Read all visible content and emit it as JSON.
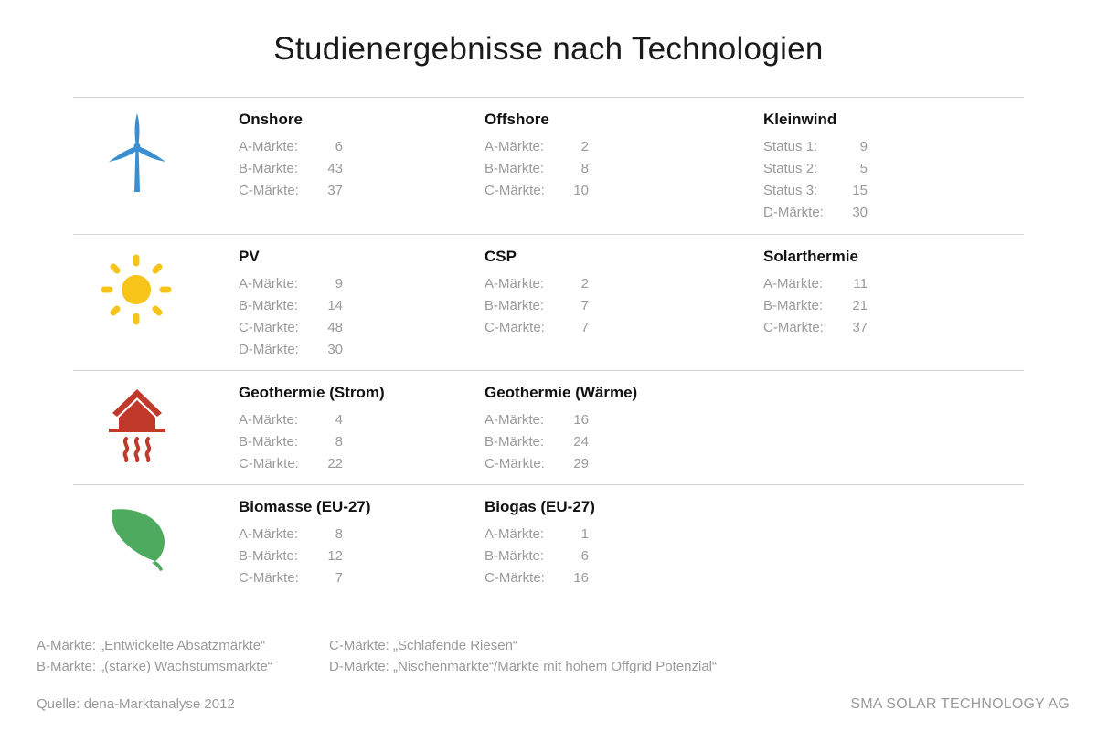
{
  "title": "Studienergebnisse nach Technologien",
  "colors": {
    "wind": "#3b8fd0",
    "sun": "#f7c41a",
    "geo": "#c0392b",
    "bio": "#4eaa5e"
  },
  "sections": [
    {
      "icon": "wind-turbine-icon",
      "groups": [
        {
          "title": "Onshore",
          "rows": [
            {
              "label": "A-Märkte:",
              "value": "6"
            },
            {
              "label": "B-Märkte:",
              "value": "43"
            },
            {
              "label": "C-Märkte:",
              "value": "37"
            }
          ]
        },
        {
          "title": "Offshore",
          "rows": [
            {
              "label": "A-Märkte:",
              "value": "2"
            },
            {
              "label": "B-Märkte:",
              "value": "8"
            },
            {
              "label": "C-Märkte:",
              "value": "10"
            }
          ]
        },
        {
          "title": "Kleinwind",
          "rows": [
            {
              "label": "Status 1:",
              "value": "9"
            },
            {
              "label": "Status 2:",
              "value": "5"
            },
            {
              "label": "Status 3:",
              "value": "15"
            },
            {
              "label": "D-Märkte:",
              "value": "30"
            }
          ]
        }
      ]
    },
    {
      "icon": "sun-icon",
      "groups": [
        {
          "title": "PV",
          "rows": [
            {
              "label": "A-Märkte:",
              "value": "9"
            },
            {
              "label": "B-Märkte:",
              "value": "14"
            },
            {
              "label": "C-Märkte:",
              "value": "48"
            },
            {
              "label": "D-Märkte:",
              "value": "30"
            }
          ]
        },
        {
          "title": "CSP",
          "rows": [
            {
              "label": "A-Märkte:",
              "value": "2"
            },
            {
              "label": "B-Märkte:",
              "value": "7"
            },
            {
              "label": "C-Märkte:",
              "value": "7"
            }
          ]
        },
        {
          "title": "Solarthermie",
          "rows": [
            {
              "label": "A-Märkte:",
              "value": "11"
            },
            {
              "label": "B-Märkte:",
              "value": "21"
            },
            {
              "label": "C-Märkte:",
              "value": "37"
            }
          ]
        }
      ]
    },
    {
      "icon": "geothermal-house-icon",
      "groups": [
        {
          "title": "Geothermie (Strom)",
          "rows": [
            {
              "label": "A-Märkte:",
              "value": "4"
            },
            {
              "label": "B-Märkte:",
              "value": "8"
            },
            {
              "label": "C-Märkte:",
              "value": "22"
            }
          ]
        },
        {
          "title": "Geothermie (Wärme)",
          "rows": [
            {
              "label": "A-Märkte:",
              "value": "16"
            },
            {
              "label": "B-Märkte:",
              "value": "24"
            },
            {
              "label": "C-Märkte:",
              "value": "29"
            }
          ]
        }
      ]
    },
    {
      "icon": "leaf-icon",
      "groups": [
        {
          "title": "Biomasse (EU-27)",
          "rows": [
            {
              "label": "A-Märkte:",
              "value": "8"
            },
            {
              "label": "B-Märkte:",
              "value": "12"
            },
            {
              "label": "C-Märkte:",
              "value": "7"
            }
          ]
        },
        {
          "title": "Biogas (EU-27)",
          "rows": [
            {
              "label": "A-Märkte:",
              "value": "1"
            },
            {
              "label": "B-Märkte:",
              "value": "6"
            },
            {
              "label": "C-Märkte:",
              "value": "16"
            }
          ]
        }
      ]
    }
  ],
  "legend": {
    "a": "A-Märkte: „Entwickelte Absatzmärkte“",
    "b": "B-Märkte: „(starke) Wachstumsmärkte“",
    "c": "C-Märkte: „Schlafende Riesen“",
    "d": "D-Märkte: „Nischenmärkte“/Märkte mit hohem Offgrid Potenzial“"
  },
  "source": "Quelle: dena-Marktanalyse 2012",
  "company": "SMA SOLAR TECHNOLOGY AG"
}
